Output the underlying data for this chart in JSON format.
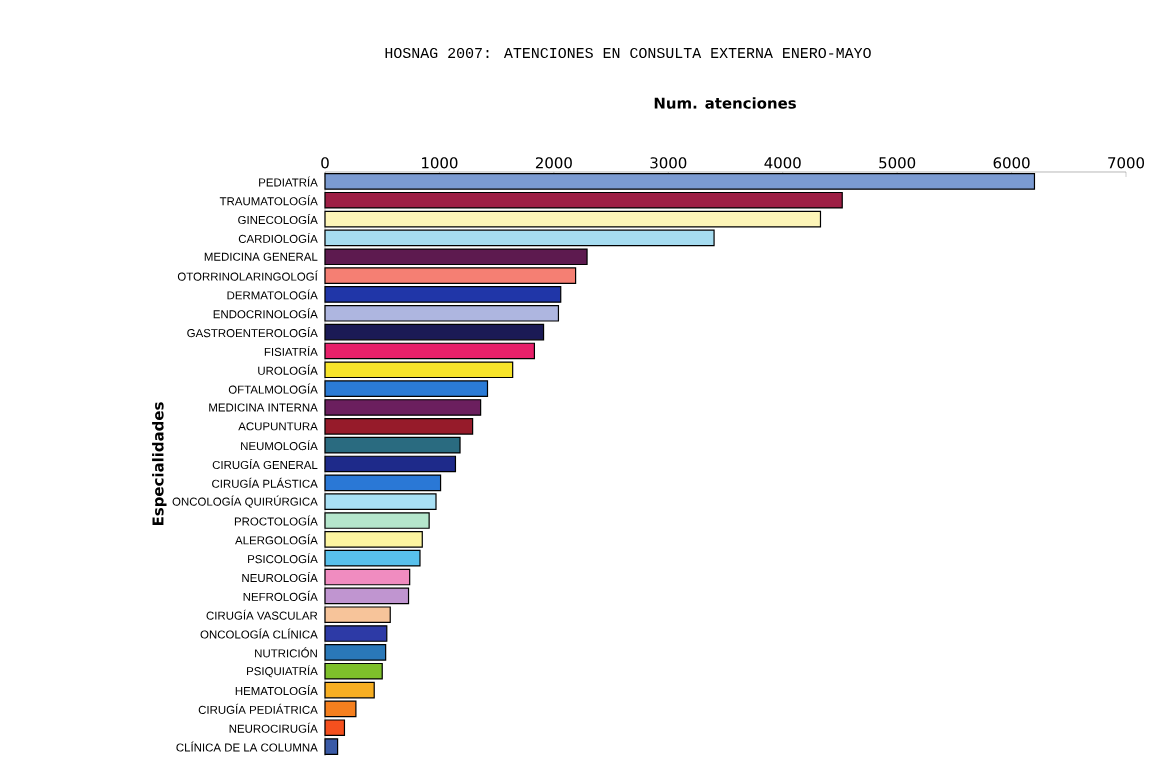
{
  "chart_data": {
    "type": "bar",
    "orientation": "horizontal",
    "title": "HOSNAG 2007: ATENCIONES EN CONSULTA EXTERNA ENERO-MAYO",
    "xlabel": "Num. atenciones",
    "ylabel": "Especialidades",
    "categories": [
      "PEDIATRÍA",
      "TRAUMATOLOGÍA",
      "GINECOLOGÍA",
      "CARDIOLOGÍA",
      "MEDICINA GENERAL",
      "OTORRINOLARINGOLOGÍ",
      "DERMATOLOGÍA",
      "ENDOCRINOLOGÍA",
      "GASTROENTEROLOGÍA",
      "FISIATRÍA",
      "UROLOGÍA",
      "OFTALMOLOGÍA",
      "MEDICINA INTERNA",
      "ACUPUNTURA",
      "NEUMOLOGÍA",
      "CIRUGÍA GENERAL",
      "CIRUGÍA PLÁSTICA",
      "ONCOLOGÍA QUIRÚRGICA",
      "PROCTOLOGÍA",
      "ALERGOLOGÍA",
      "PSICOLOGÍA",
      "NEUROLOGÍA",
      "NEFROLOGÍA",
      "CIRUGÍA VASCULAR",
      "ONCOLOGÍA CLÍNICA",
      "NUTRICIÓN",
      "PSIQUIATRÍA",
      "HEMATOLOGÍA",
      "CIRUGÍA PEDIÁTRICA",
      "NEUROCIRUGÍA",
      "CLÍNICA DE LA COLUMNA"
    ],
    "values": [
      6200,
      4520,
      4330,
      3400,
      2290,
      2190,
      2060,
      2040,
      1910,
      1830,
      1640,
      1420,
      1360,
      1290,
      1180,
      1140,
      1010,
      970,
      910,
      850,
      830,
      740,
      730,
      570,
      540,
      530,
      500,
      430,
      270,
      170,
      110
    ],
    "colors": [
      "#7b9bd2",
      "#9e1f45",
      "#fdf5b8",
      "#a6dcf0",
      "#5d1a4f",
      "#f57f73",
      "#2036a8",
      "#aeb6e0",
      "#1b1a55",
      "#e8206a",
      "#f7e42a",
      "#2b7bd6",
      "#6b1f5e",
      "#961b2a",
      "#2a6b80",
      "#1e2a8a",
      "#2a78d6",
      "#a8e0f5",
      "#b5e6cc",
      "#fdf5a0",
      "#58c0ec",
      "#f08cc0",
      "#c095d0",
      "#f7c49a",
      "#2d3aa6",
      "#2a78b8",
      "#7ec02a",
      "#f7ae22",
      "#f57f1e",
      "#f5501e",
      "#3a5aa6"
    ],
    "xlim": [
      0,
      7000
    ],
    "xticks": [
      0,
      1000,
      2000,
      3000,
      4000,
      5000,
      6000,
      7000
    ]
  }
}
